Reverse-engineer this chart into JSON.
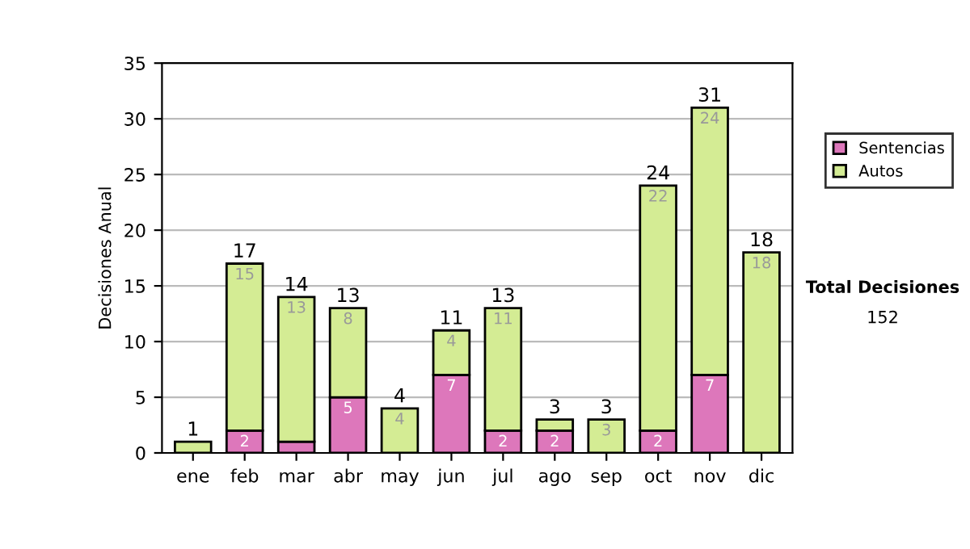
{
  "chart_data": {
    "type": "bar",
    "stacked": true,
    "ylabel": "Decisiones Anual",
    "categories": [
      "ene",
      "feb",
      "mar",
      "abr",
      "may",
      "jun",
      "jul",
      "ago",
      "sep",
      "oct",
      "nov",
      "dic"
    ],
    "series": [
      {
        "name": "Sentencias",
        "color": "#dd77bb",
        "values": [
          0,
          2,
          1,
          5,
          0,
          7,
          2,
          2,
          0,
          2,
          7,
          0
        ],
        "value_labels": [
          null,
          "2",
          null,
          "5",
          null,
          "7",
          "2",
          "2",
          null,
          "2",
          "7",
          null
        ]
      },
      {
        "name": "Autos",
        "color": "#d4ec94",
        "values": [
          1,
          15,
          13,
          8,
          4,
          4,
          11,
          1,
          3,
          22,
          24,
          18
        ],
        "value_labels": [
          null,
          "15",
          "13",
          "8",
          "4",
          "4",
          "11",
          null,
          "3",
          "22",
          "24",
          "18"
        ]
      }
    ],
    "totals": [
      "1",
      "17",
      "14",
      "13",
      "4",
      "11",
      "13",
      "3",
      "3",
      "24",
      "31",
      "18"
    ],
    "ylim": [
      0,
      35
    ],
    "yticks": [
      0,
      5,
      10,
      15,
      20,
      25,
      30,
      35
    ],
    "grid": "y",
    "legend": "right",
    "annotations": [
      "Total Decisiones",
      "152"
    ]
  }
}
